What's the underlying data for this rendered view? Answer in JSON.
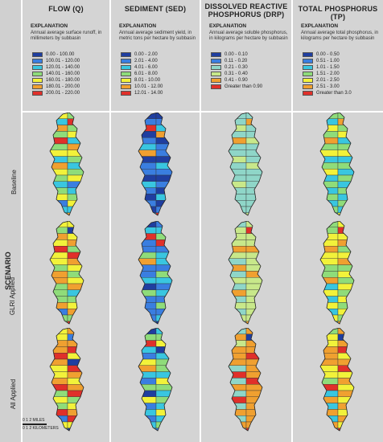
{
  "columns": [
    {
      "title": "FLOW (Q)",
      "explanation_title": "EXPLANATION",
      "description": "Annual average surface runoff, in millimeters by subbasin",
      "classes": [
        {
          "label": "0.00 - 100.00",
          "color": "#1f3ea0"
        },
        {
          "label": "100.01 - 120.00",
          "color": "#3a7ee0"
        },
        {
          "label": "120.01 - 140.00",
          "color": "#39c6e0"
        },
        {
          "label": "140.01 - 160.00",
          "color": "#8fdc7a"
        },
        {
          "label": "160.01 - 180.00",
          "color": "#f2f23a"
        },
        {
          "label": "180.01 - 200.00",
          "color": "#f0a030"
        },
        {
          "label": "200.01 - 220.00",
          "color": "#e0302a"
        }
      ]
    },
    {
      "title": "SEDIMENT (SED)",
      "explanation_title": "EXPLANATION",
      "description": "Annual average sediment yield, in metric tons per hectare by subbasin",
      "classes": [
        {
          "label": "0.00 - 2.00",
          "color": "#1f3ea0"
        },
        {
          "label": "2.01 - 4.00",
          "color": "#3a7ee0"
        },
        {
          "label": "4.01 - 6.00",
          "color": "#39c6e0"
        },
        {
          "label": "6.01 - 8.00",
          "color": "#8fdc7a"
        },
        {
          "label": "8.01 - 10.00",
          "color": "#f2f23a"
        },
        {
          "label": "10.01 - 12.00",
          "color": "#f0a030"
        },
        {
          "label": "12.01 - 14.00",
          "color": "#e0302a"
        }
      ]
    },
    {
      "title": "DISSOLVED REACTIVE PHOSPHORUS (DRP)",
      "title_lines": [
        "DISSOLVED REACTIVE",
        "PHOSPHORUS (DRP)"
      ],
      "explanation_title": "EXPLANATION",
      "description": "Annual average soluble phosphorus, in kilograms per hectare by subbasin",
      "classes": [
        {
          "label": "0.00 - 0.10",
          "color": "#1f3ea0"
        },
        {
          "label": "0.11 - 0.20",
          "color": "#3a7ee0"
        },
        {
          "label": "0.21 - 0.30",
          "color": "#8fd6c8"
        },
        {
          "label": "0.31 - 0.40",
          "color": "#c8e88a"
        },
        {
          "label": "0.41 - 0.90",
          "color": "#f0a030"
        },
        {
          "label": "Greater than 0.90",
          "color": "#e0302a"
        }
      ]
    },
    {
      "title": "TOTAL PHOSPHORUS (TP)",
      "explanation_title": "EXPLANATION",
      "description": "Annual average total phosphorus, in kilograms per hectare by subbasin",
      "classes": [
        {
          "label": "0.00 - 0.50",
          "color": "#1f3ea0"
        },
        {
          "label": "0.51 - 1.00",
          "color": "#3a7ee0"
        },
        {
          "label": "1.01 - 1.50",
          "color": "#39c6e0"
        },
        {
          "label": "1.51 - 2.00",
          "color": "#8fdc7a"
        },
        {
          "label": "2.01 - 2.50",
          "color": "#f2f23a"
        },
        {
          "label": "2.51 - 3.00",
          "color": "#f0a030"
        },
        {
          "label": "Greater than 3.0",
          "color": "#e0302a"
        }
      ]
    }
  ],
  "scenario": {
    "label": "SCENARIO",
    "rows": [
      "Baseline",
      "GLRI Applied",
      "All Applied"
    ]
  },
  "scalebar": {
    "miles": "0  1  2 MILES",
    "km": "0  1  2 KILOMETERS"
  }
}
